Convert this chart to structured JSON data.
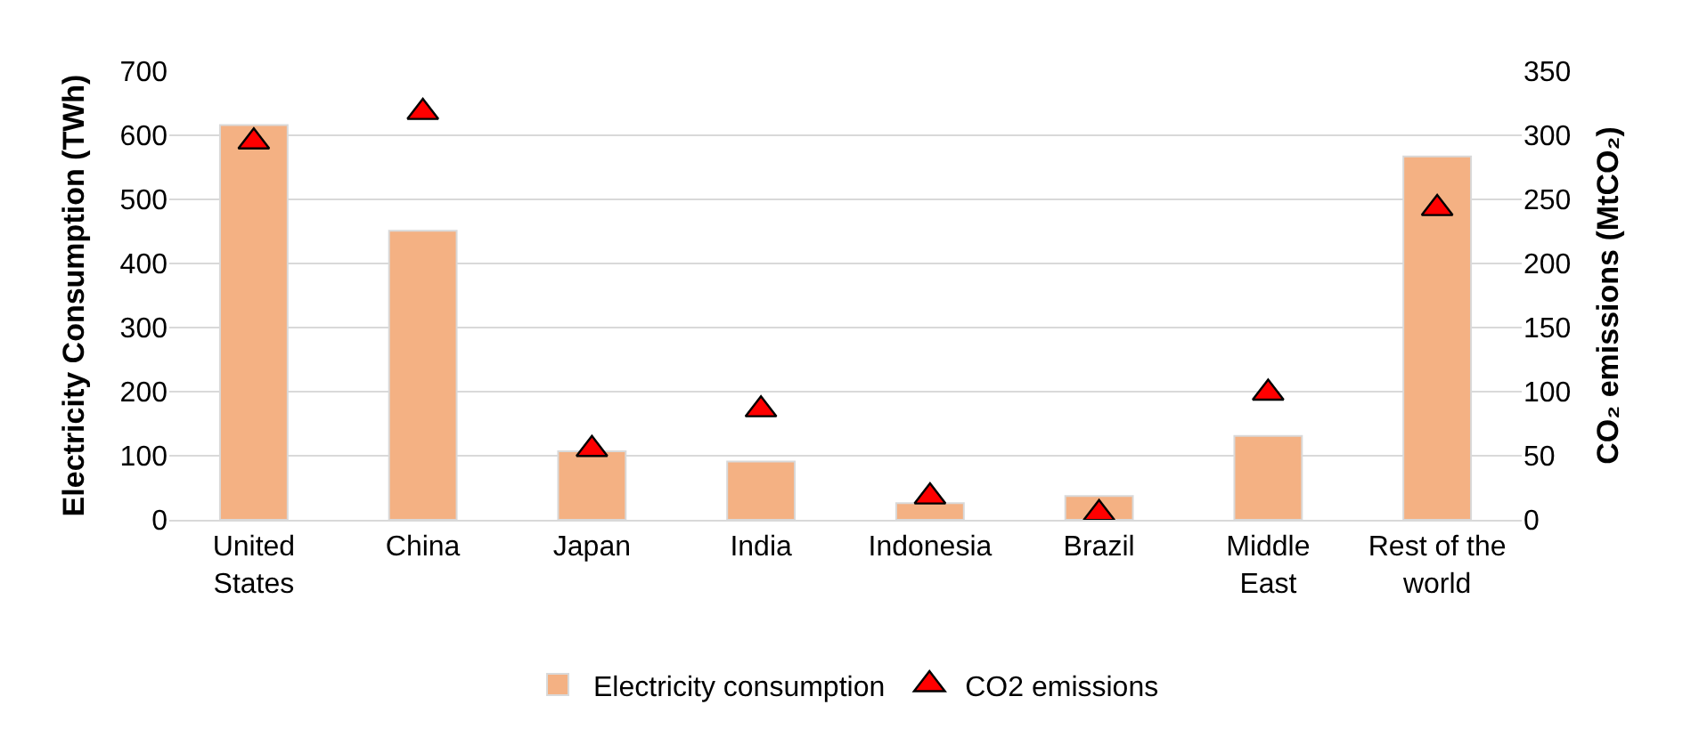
{
  "chart_data": {
    "type": "bar",
    "ylabel": "Electricity Consumption (TWh)",
    "y2label": "CO₂ emissions (MtCO₂)",
    "categories": [
      "United States",
      "China",
      "Japan",
      "India",
      "Indonesia",
      "Brazil",
      "Middle East",
      "Rest of the world"
    ],
    "series": [
      {
        "name": "Electricity consumption",
        "color": "#f4b183",
        "values": [
          616,
          451,
          107,
          91,
          26,
          37,
          131,
          567
        ]
      },
      {
        "name": "CO2 emissions",
        "type": "scatter",
        "axis": "y2",
        "marker": "triangle",
        "color": "#ff0000",
        "values": [
          295,
          318,
          55,
          86,
          18,
          5,
          99,
          243
        ]
      }
    ],
    "ylim": [
      0,
      700
    ],
    "yticks": [
      0,
      100,
      200,
      300,
      400,
      500,
      600,
      700
    ],
    "y2lim": [
      0,
      350
    ],
    "y2ticks": [
      0,
      50,
      100,
      150,
      200,
      250,
      300,
      350
    ],
    "grid": "y",
    "legend": "bottom"
  }
}
